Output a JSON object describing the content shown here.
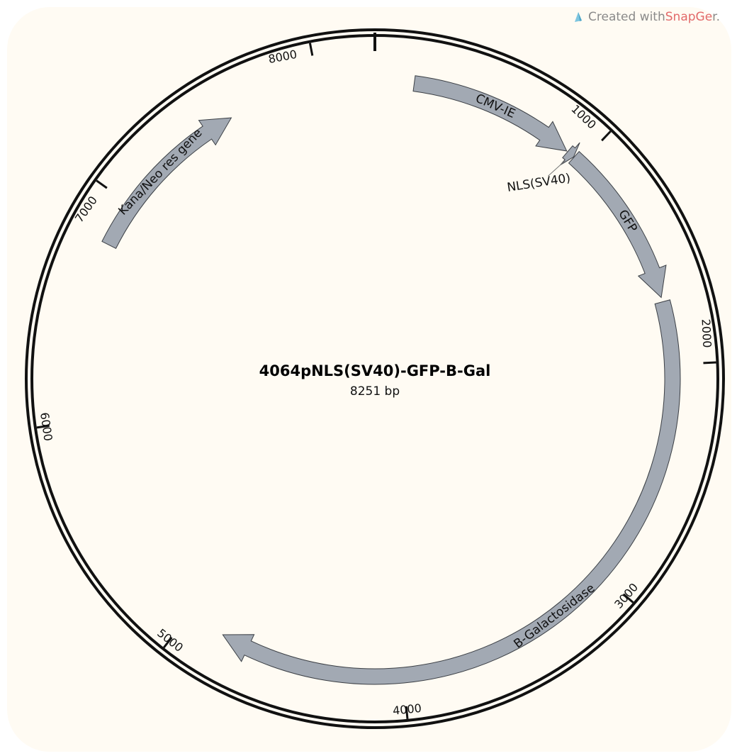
{
  "credit": {
    "prefix": "Created with ",
    "brand": "SnapGe",
    "suffix": "r.",
    "logo_icon": "snapgene-logo-icon"
  },
  "plasmid": {
    "name": "4064pNLS(SV40)-GFP-B-Gal",
    "size_label": "8251 bp",
    "length_bp": 8251
  },
  "ticks": [
    {
      "bp": 1000,
      "label": "1000"
    },
    {
      "bp": 2000,
      "label": "2000"
    },
    {
      "bp": 3000,
      "label": "3000"
    },
    {
      "bp": 4000,
      "label": "4000"
    },
    {
      "bp": 5000,
      "label": "5000"
    },
    {
      "bp": 6000,
      "label": "6000"
    },
    {
      "bp": 7000,
      "label": "7000"
    },
    {
      "bp": 8000,
      "label": "8000"
    }
  ],
  "features": [
    {
      "name": "CMV-IE",
      "start": 174,
      "end": 920,
      "direction": "forward",
      "color": "#a2a9b3"
    },
    {
      "name": "NLS(SV40)",
      "start": 925,
      "end": 960,
      "direction": "forward",
      "color": "#a2a9b3"
    },
    {
      "name": "GFP",
      "start": 962,
      "end": 1700,
      "direction": "forward",
      "color": "#a2a9b3"
    },
    {
      "name": "B-Galactosidase",
      "start": 1720,
      "end": 4830,
      "direction": "forward",
      "color": "#a2a9b3"
    },
    {
      "name": "Kana/Neo res gene",
      "start": 6800,
      "end": 7590,
      "direction": "forward",
      "color": "#a2a9b3"
    }
  ]
}
